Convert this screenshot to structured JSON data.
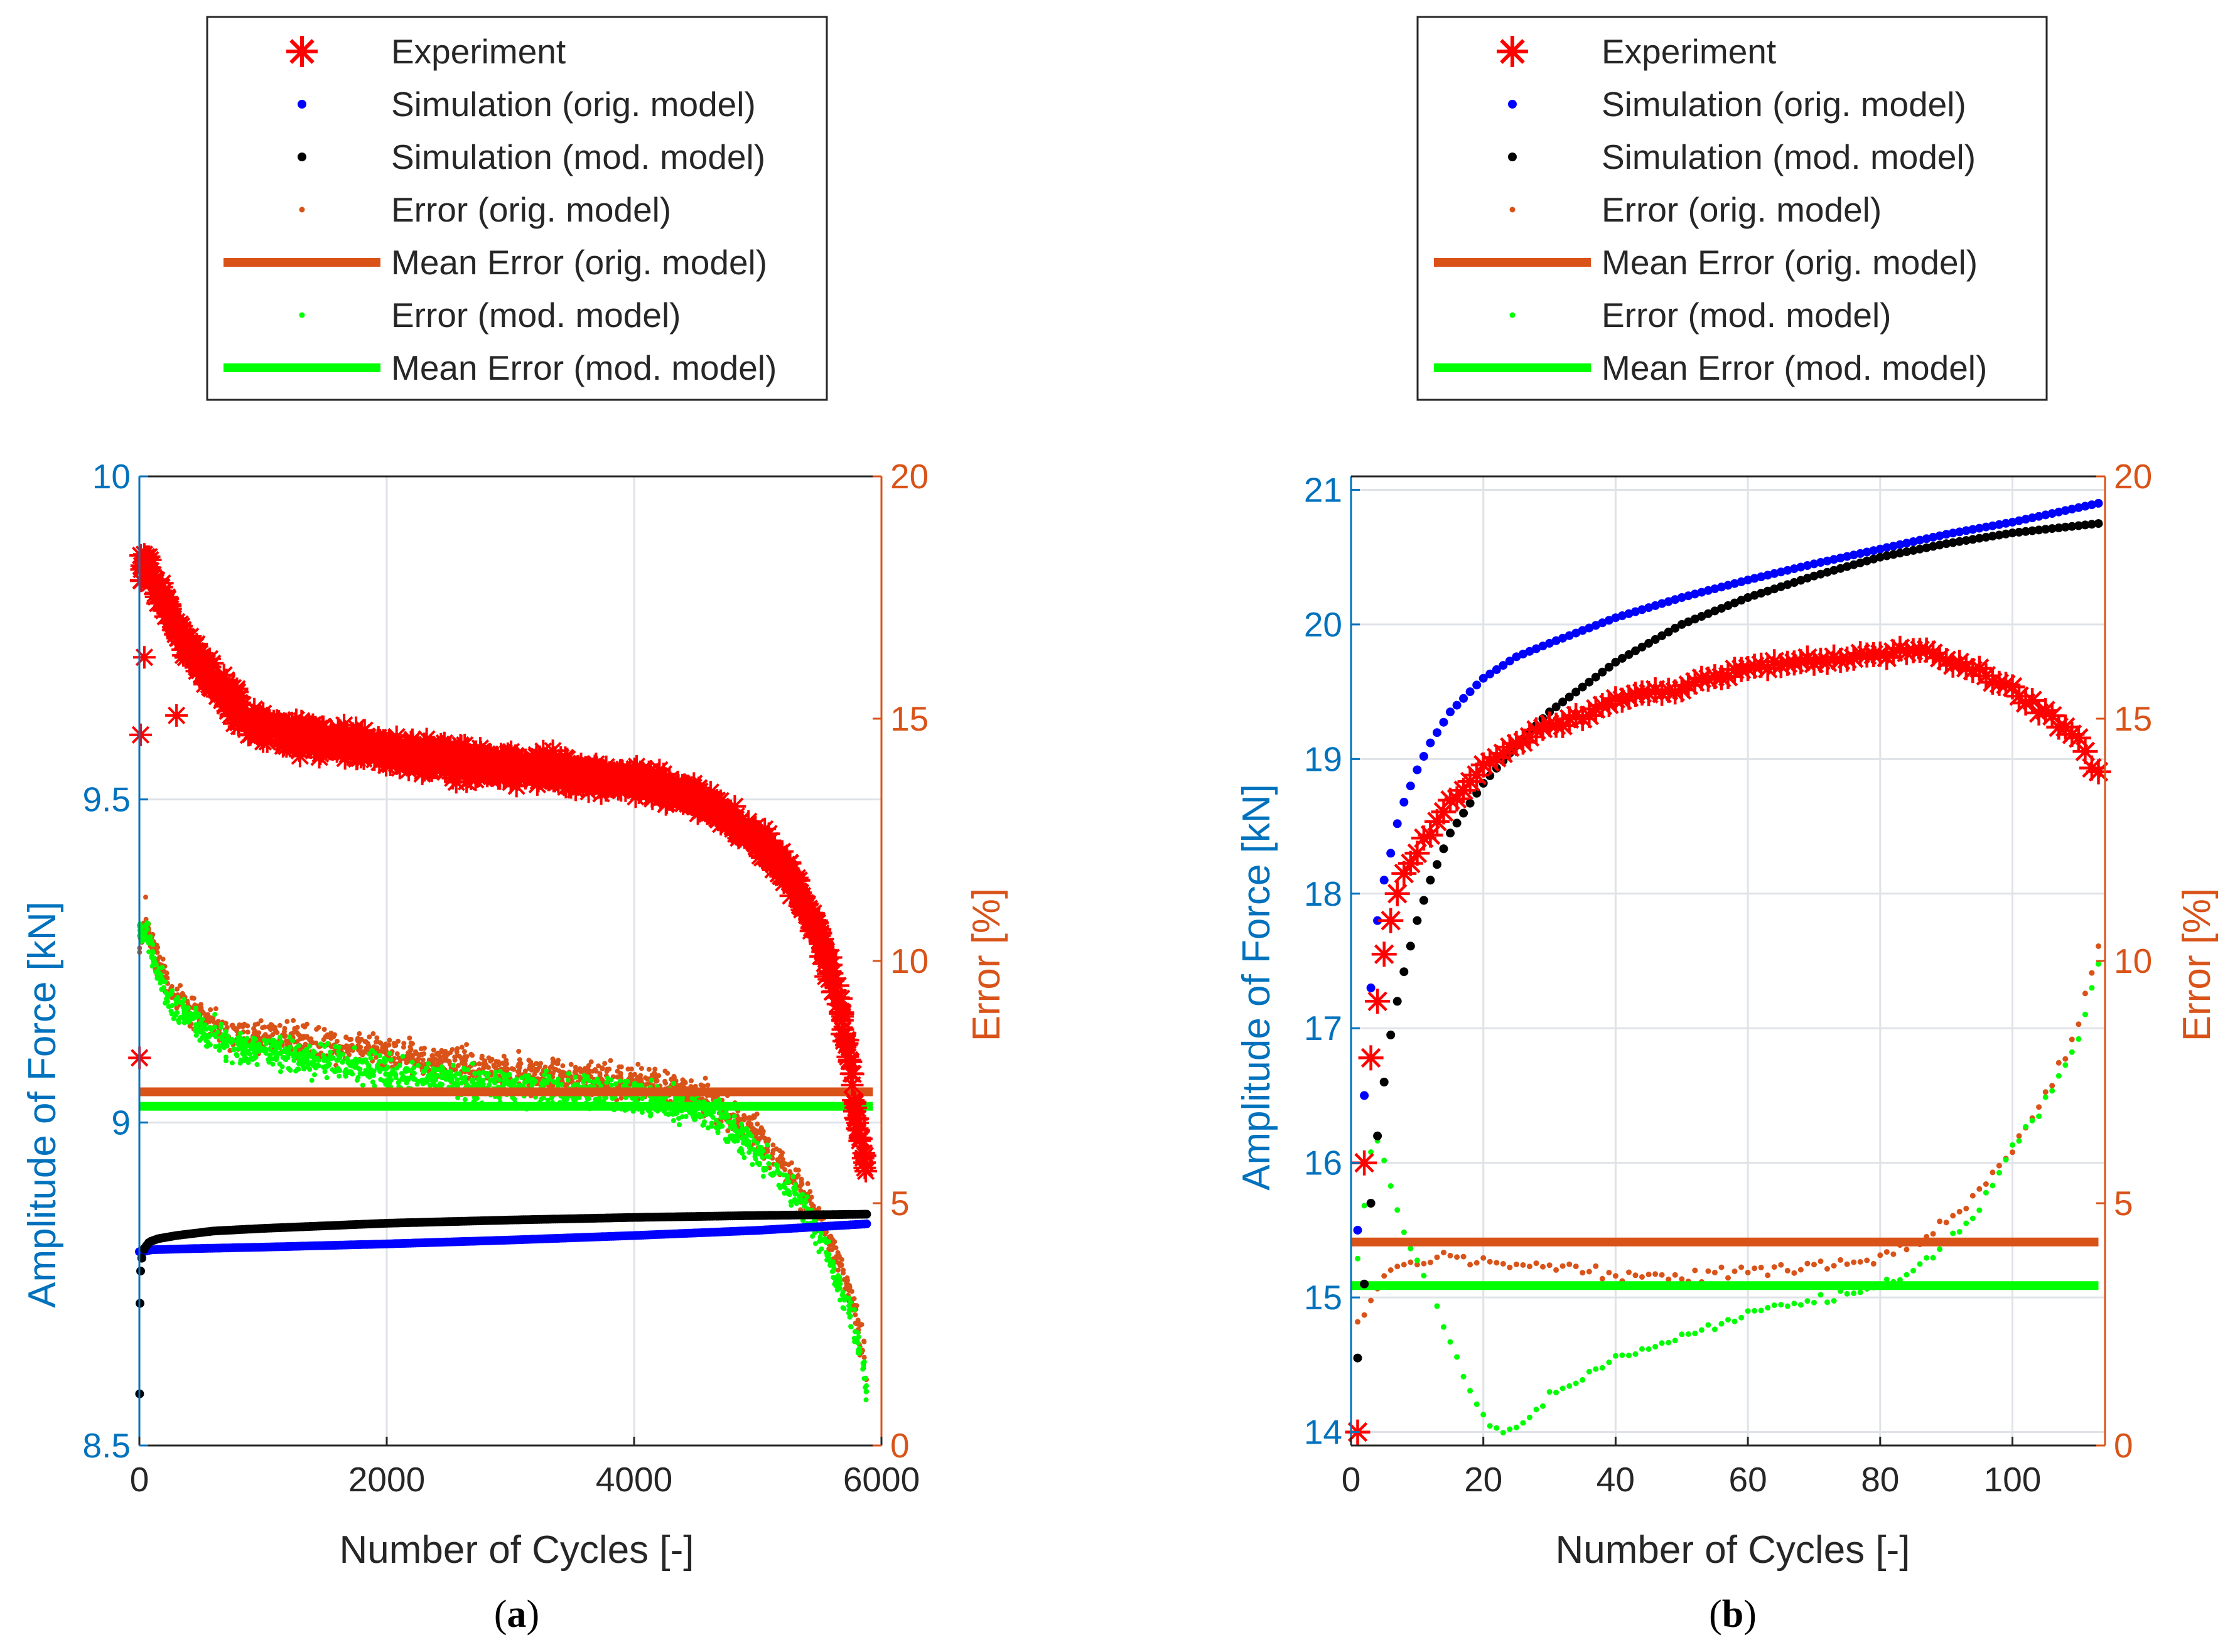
{
  "legend": {
    "entries": [
      {
        "key": "experiment",
        "label": "Experiment",
        "color": "#ff0000",
        "marker": "asterisk"
      },
      {
        "key": "sim_orig",
        "label": "Simulation (orig. model)",
        "color": "#0000ff",
        "marker": "dot"
      },
      {
        "key": "sim_mod",
        "label": "Simulation (mod. model)",
        "color": "#000000",
        "marker": "dot"
      },
      {
        "key": "err_orig",
        "label": "Error (orig. model)",
        "color": "#d95319",
        "marker": "small-dot"
      },
      {
        "key": "mean_orig",
        "label": "Mean Error (orig. model)",
        "color": "#d95319",
        "marker": "line"
      },
      {
        "key": "err_mod",
        "label": "Error (mod. model)",
        "color": "#00ff00",
        "marker": "small-dot"
      },
      {
        "key": "mean_mod",
        "label": "Mean Error (mod. model)",
        "color": "#00ff00",
        "marker": "line"
      }
    ]
  },
  "colors": {
    "left_axis": "#0072bd",
    "right_axis": "#d95319",
    "experiment": "#ff0000",
    "sim_orig": "#0000ff",
    "sim_mod": "#000000",
    "err_orig": "#d95319",
    "err_mod": "#00ff00",
    "grid": "#dfe3e8",
    "axis_black": "#262626"
  },
  "chart_data": [
    {
      "panel": "a",
      "caption": "(a)",
      "type": "scatter",
      "xlabel": "Number of Cycles [-]",
      "ylabel_left": "Amplitude of Force [kN]",
      "ylabel_right": "Error [%]",
      "xlim": [
        0,
        6000
      ],
      "ylim_left": [
        8.5,
        10
      ],
      "ylim_right": [
        0,
        20
      ],
      "xticks": [
        0,
        2000,
        4000,
        6000
      ],
      "yticks_left": [
        8.5,
        9,
        9.5,
        10
      ],
      "yticks_right": [
        0,
        5,
        10,
        15,
        20
      ],
      "x_max": 5880,
      "experiment_curve": {
        "x": [
          0,
          60,
          150,
          300,
          500,
          700,
          900,
          1200,
          1600,
          2000,
          2500,
          3000,
          3500,
          4000,
          4400,
          4700,
          5000,
          5300,
          5500,
          5650,
          5750,
          5800,
          5880
        ],
        "y": [
          9.84,
          9.87,
          9.83,
          9.76,
          9.71,
          9.66,
          9.62,
          9.6,
          9.59,
          9.575,
          9.56,
          9.55,
          9.54,
          9.53,
          9.51,
          9.48,
          9.44,
          9.37,
          9.29,
          9.19,
          9.09,
          9.0,
          8.93
        ],
        "spread": 0.035
      },
      "experiment_outliers": {
        "x": [
          1,
          10,
          40,
          300
        ],
        "y": [
          9.1,
          9.6,
          9.72,
          9.63
        ]
      },
      "sim_orig_curve": {
        "x": [
          0,
          10,
          30,
          100,
          500,
          1000,
          2000,
          3000,
          4000,
          5000,
          5880
        ],
        "y": [
          8.8,
          8.8,
          8.8,
          8.803,
          8.805,
          8.807,
          8.812,
          8.818,
          8.825,
          8.833,
          8.843
        ]
      },
      "sim_mod_curve": {
        "x": [
          2,
          5,
          10,
          20,
          40,
          80,
          150,
          300,
          600,
          1000,
          1500,
          2000,
          3000,
          4000,
          5000,
          5880
        ],
        "y": [
          8.58,
          8.72,
          8.77,
          8.79,
          8.805,
          8.815,
          8.82,
          8.825,
          8.832,
          8.836,
          8.84,
          8.844,
          8.849,
          8.853,
          8.856,
          8.858
        ]
      },
      "err_orig_curve": {
        "x": [
          0,
          50,
          100,
          200,
          400,
          700,
          1000,
          1500,
          2000,
          2500,
          3000,
          3500,
          4000,
          4400,
          4700,
          5000,
          5200,
          5400,
          5550,
          5700,
          5800,
          5850,
          5880
        ],
        "y": [
          10.3,
          10.9,
          10.3,
          9.6,
          9.0,
          8.5,
          8.4,
          8.3,
          8.1,
          7.9,
          7.7,
          7.6,
          7.5,
          7.3,
          7.0,
          6.4,
          5.8,
          5.1,
          4.4,
          3.5,
          2.6,
          1.9,
          1.5
        ]
      },
      "err_mod_curve": {
        "x": [
          0,
          50,
          100,
          200,
          400,
          700,
          1000,
          1500,
          2000,
          2500,
          3000,
          3500,
          4000,
          4400,
          4700,
          5000,
          5200,
          5400,
          5550,
          5700,
          5800,
          5850,
          5880
        ],
        "y": [
          10.5,
          10.7,
          10.1,
          9.4,
          8.8,
          8.3,
          8.1,
          7.9,
          7.7,
          7.5,
          7.4,
          7.3,
          7.2,
          7.0,
          6.7,
          6.1,
          5.5,
          4.8,
          4.0,
          3.1,
          2.2,
          1.6,
          1.2
        ]
      },
      "err_spread": 0.5,
      "mean_error_orig": 7.3,
      "mean_error_mod": 7.0
    },
    {
      "panel": "b",
      "caption": "(b)",
      "type": "scatter",
      "xlabel": "Number of Cycles [-]",
      "ylabel_left": "Amplitude of Force [kN]",
      "ylabel_right": "Error [%]",
      "xlim": [
        0,
        114
      ],
      "ylim_left": [
        13.9,
        21.1
      ],
      "ylim_right": [
        0,
        20
      ],
      "xticks": [
        0,
        20,
        40,
        60,
        80,
        100
      ],
      "yticks_left": [
        14,
        15,
        16,
        17,
        18,
        19,
        20,
        21
      ],
      "yticks_right": [
        0,
        5,
        10,
        15,
        20
      ],
      "n_points": 113,
      "experiment_curve": {
        "x": [
          1,
          2,
          3,
          4,
          5,
          6,
          7,
          8,
          10,
          12,
          15,
          20,
          25,
          30,
          40,
          50,
          60,
          70,
          80,
          85,
          90,
          95,
          100,
          105,
          110,
          113
        ],
        "y": [
          14.0,
          16.0,
          16.78,
          17.2,
          17.55,
          17.8,
          18.0,
          18.15,
          18.3,
          18.45,
          18.68,
          18.95,
          19.12,
          19.25,
          19.42,
          19.55,
          19.68,
          19.74,
          19.78,
          19.82,
          19.72,
          19.65,
          19.5,
          19.35,
          19.15,
          18.88
        ]
      },
      "sim_orig_curve": {
        "x": [
          1,
          2,
          3,
          4,
          5,
          6,
          7,
          8,
          10,
          12,
          15,
          20,
          25,
          30,
          40,
          50,
          60,
          70,
          80,
          90,
          100,
          113
        ],
        "y": [
          15.5,
          16.5,
          17.3,
          17.8,
          18.1,
          18.3,
          18.52,
          18.68,
          18.92,
          19.12,
          19.35,
          19.6,
          19.76,
          19.86,
          20.05,
          20.2,
          20.33,
          20.45,
          20.56,
          20.67,
          20.76,
          20.9
        ]
      },
      "sim_mod_curve": {
        "x": [
          1,
          2,
          3,
          4,
          5,
          6,
          7,
          8,
          10,
          12,
          15,
          20,
          25,
          30,
          40,
          50,
          60,
          70,
          80,
          90,
          100,
          113
        ],
        "y": [
          14.55,
          15.1,
          15.7,
          16.2,
          16.6,
          16.95,
          17.2,
          17.42,
          17.8,
          18.1,
          18.45,
          18.82,
          19.1,
          19.35,
          19.72,
          20.0,
          20.2,
          20.36,
          20.5,
          20.6,
          20.68,
          20.75
        ]
      },
      "err_orig_curve": {
        "x": [
          1,
          2,
          3,
          5,
          8,
          10,
          15,
          20,
          30,
          40,
          50,
          60,
          70,
          80,
          85,
          90,
          95,
          100,
          105,
          110,
          113
        ],
        "y": [
          2.5,
          2.7,
          3.0,
          3.5,
          3.7,
          3.75,
          3.85,
          3.75,
          3.7,
          3.55,
          3.45,
          3.6,
          3.7,
          3.85,
          4.1,
          4.6,
          5.3,
          6.1,
          7.2,
          8.7,
          10.3
        ]
      },
      "err_mod_curve": {
        "x": [
          1,
          2,
          3,
          4,
          5,
          6,
          8,
          10,
          12,
          15,
          18,
          20,
          22,
          25,
          30,
          40,
          50,
          60,
          70,
          80,
          85,
          90,
          95,
          100,
          105,
          110,
          113
        ],
        "y": [
          3.8,
          4.9,
          6.1,
          6.3,
          5.9,
          5.3,
          4.4,
          3.8,
          3.2,
          2.1,
          1.1,
          0.6,
          0.3,
          0.4,
          1.0,
          1.8,
          2.2,
          2.7,
          3.0,
          3.3,
          3.6,
          4.1,
          4.9,
          6.1,
          7.1,
          8.4,
          9.9
        ]
      },
      "err_spread": 0.15,
      "mean_error_orig": 4.2,
      "mean_error_mod": 3.3
    }
  ]
}
